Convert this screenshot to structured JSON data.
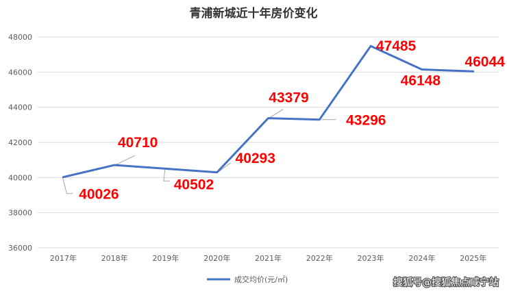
{
  "chart_data": {
    "type": "line",
    "title": "青浦新城近十年房价变化",
    "categories": [
      "2017年",
      "2018年",
      "2019年",
      "2020年",
      "2021年",
      "2022年",
      "2023年",
      "2024年",
      "2025年"
    ],
    "series": [
      {
        "name": "成交均价(元/㎡)",
        "values": [
          40026,
          40710,
          40502,
          40293,
          43379,
          43296,
          47485,
          46148,
          46044
        ],
        "color": "#4472c4"
      }
    ],
    "data_labels": [
      "40026",
      "40710",
      "40502",
      "40293",
      "43379",
      "43296",
      "47485",
      "46148",
      "46044"
    ],
    "ylim": [
      36000,
      48000
    ],
    "yticks": [
      "36000",
      "38000",
      "40000",
      "42000",
      "44000",
      "46000",
      "48000"
    ],
    "grid": true,
    "legend": "bottom",
    "label_color": "#ff0000"
  },
  "watermark": "搜狐号@搜狐焦点咸宁站"
}
